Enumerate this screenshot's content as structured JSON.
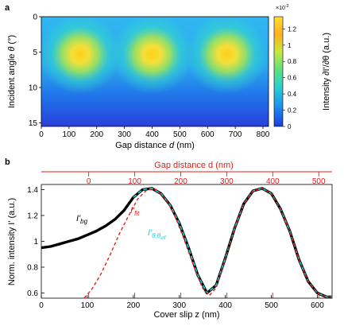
{
  "chart_data": [
    {
      "panel_label": "a",
      "type": "heatmap",
      "xlabel_pre": "Gap distance ",
      "xlabel_var": "d",
      "xlabel_post": " (nm)",
      "ylabel_pre": "Incident angle ",
      "ylabel_var": "θ",
      "ylabel_post": " (°)",
      "x_ticks": [
        "0",
        "100",
        "200",
        "300",
        "400",
        "500",
        "600",
        "700",
        "800"
      ],
      "y_ticks": [
        "0",
        "5",
        "10",
        "15"
      ],
      "xlim": [
        0,
        820
      ],
      "ylim": [
        0,
        15.5
      ],
      "peaks_x": [
        140,
        400,
        670
      ],
      "peak_y": 5.3,
      "colorbar": {
        "ticks": [
          "1.2",
          "1",
          "0.8",
          "0.6",
          "0.4",
          "0.2",
          "0"
        ],
        "tick_values": [
          1.2,
          1.0,
          0.8,
          0.6,
          0.4,
          0.2,
          0
        ],
        "range": [
          0,
          1.35
        ],
        "exponent_label": "×10",
        "exponent_power": "-3",
        "label": "Intensity ∂I'/∂θ (a.u.)"
      }
    },
    {
      "panel_label": "b",
      "type": "line",
      "xlabel": "Cover slip z (nm)",
      "ylabel": "Norm. intensity I' (a.u.)",
      "x_ticks": [
        "0",
        "100",
        "200",
        "300",
        "400",
        "500",
        "600"
      ],
      "y_ticks": [
        "1.4",
        "1.2",
        "1",
        "0.8",
        "0.6"
      ],
      "xlim": [
        0,
        632
      ],
      "ylim": [
        0.56,
        1.44
      ],
      "top_axis": {
        "label": "Gap distance d (nm)",
        "ticks": [
          "0",
          "100",
          "200",
          "300",
          "400",
          "500"
        ],
        "offset_z": 103,
        "color": "#e0201b"
      },
      "series": [
        {
          "name": "I'bg",
          "name_main": "I'",
          "name_sub": "bg",
          "color": "#000000",
          "x": [
            0,
            20,
            40,
            60,
            80,
            100,
            120,
            140,
            160,
            180,
            200,
            220,
            240,
            260,
            280,
            300,
            320,
            340,
            360,
            380,
            400,
            420,
            440,
            460,
            480,
            500,
            520,
            540,
            560,
            580,
            600,
            620,
            632
          ],
          "y": [
            0.95,
            0.96,
            0.98,
            1.0,
            1.02,
            1.05,
            1.08,
            1.12,
            1.17,
            1.24,
            1.34,
            1.4,
            1.41,
            1.37,
            1.28,
            1.14,
            0.95,
            0.74,
            0.6,
            0.66,
            0.87,
            1.1,
            1.29,
            1.39,
            1.41,
            1.37,
            1.25,
            1.08,
            0.86,
            0.69,
            0.6,
            0.57,
            0.57
          ]
        },
        {
          "name": "I'fit",
          "name_main": "I'",
          "name_sub": "fit",
          "color": "#e0201b",
          "x": [
            93,
            110,
            130,
            150,
            170,
            190,
            210,
            230,
            250,
            270,
            290,
            310,
            330,
            350,
            365,
            380,
            400,
            420,
            440,
            460,
            480,
            500,
            520,
            540,
            560,
            580,
            600,
            620,
            632
          ],
          "y": [
            0.56,
            0.63,
            0.75,
            0.9,
            1.06,
            1.2,
            1.33,
            1.4,
            1.4,
            1.33,
            1.2,
            1.02,
            0.82,
            0.64,
            0.58,
            0.64,
            0.87,
            1.1,
            1.29,
            1.39,
            1.41,
            1.37,
            1.25,
            1.08,
            0.86,
            0.69,
            0.6,
            0.57,
            0.57
          ]
        },
        {
          "name": "I'θ,θeff",
          "name_main": "I'",
          "name_sub": "θ,θ",
          "name_subsub": "eff",
          "color": "#1fd0d8",
          "x": [
            200,
            220,
            240,
            260,
            280,
            300,
            320,
            340,
            360,
            380,
            400,
            420,
            440,
            460,
            480,
            500,
            520,
            540,
            560,
            580,
            600,
            620,
            632
          ],
          "y": [
            1.34,
            1.4,
            1.41,
            1.37,
            1.28,
            1.14,
            0.95,
            0.74,
            0.6,
            0.66,
            0.87,
            1.1,
            1.29,
            1.39,
            1.41,
            1.37,
            1.25,
            1.08,
            0.86,
            0.69,
            0.6,
            0.57,
            0.57
          ]
        }
      ]
    }
  ]
}
